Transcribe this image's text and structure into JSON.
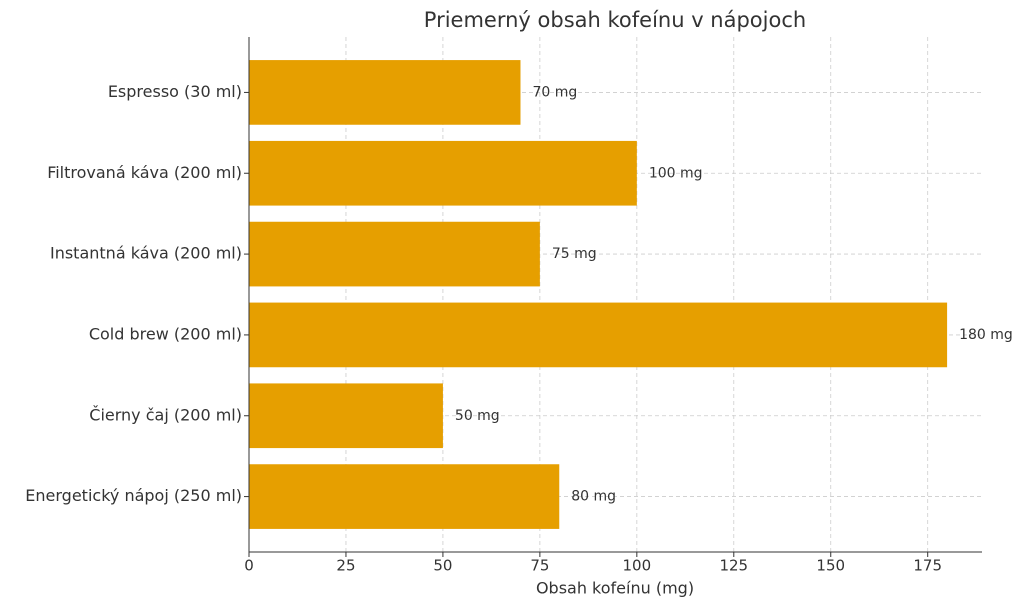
{
  "chart_data": {
    "type": "barh",
    "title": "Priemerný obsah kofeínu v nápojoch",
    "x_label": "Obsah kofeínu (mg)",
    "categories": [
      "Espresso (30 ml)",
      "Filtrovaná káva (200 ml)",
      "Instantná káva (200 ml)",
      "Cold brew (200 ml)",
      "Čierny čaj (200 ml)",
      "Energetický nápoj (250 ml)"
    ],
    "values": [
      70,
      100,
      75,
      180,
      50,
      80
    ],
    "value_labels": [
      "70 mg",
      "100 mg",
      "75 mg",
      "180 mg",
      "50 mg",
      "80 mg"
    ],
    "color": "#e69f00",
    "xlim": [
      0,
      189
    ],
    "xticks": [
      0,
      25,
      50,
      75,
      100,
      125,
      150,
      175
    ],
    "grid": true
  }
}
